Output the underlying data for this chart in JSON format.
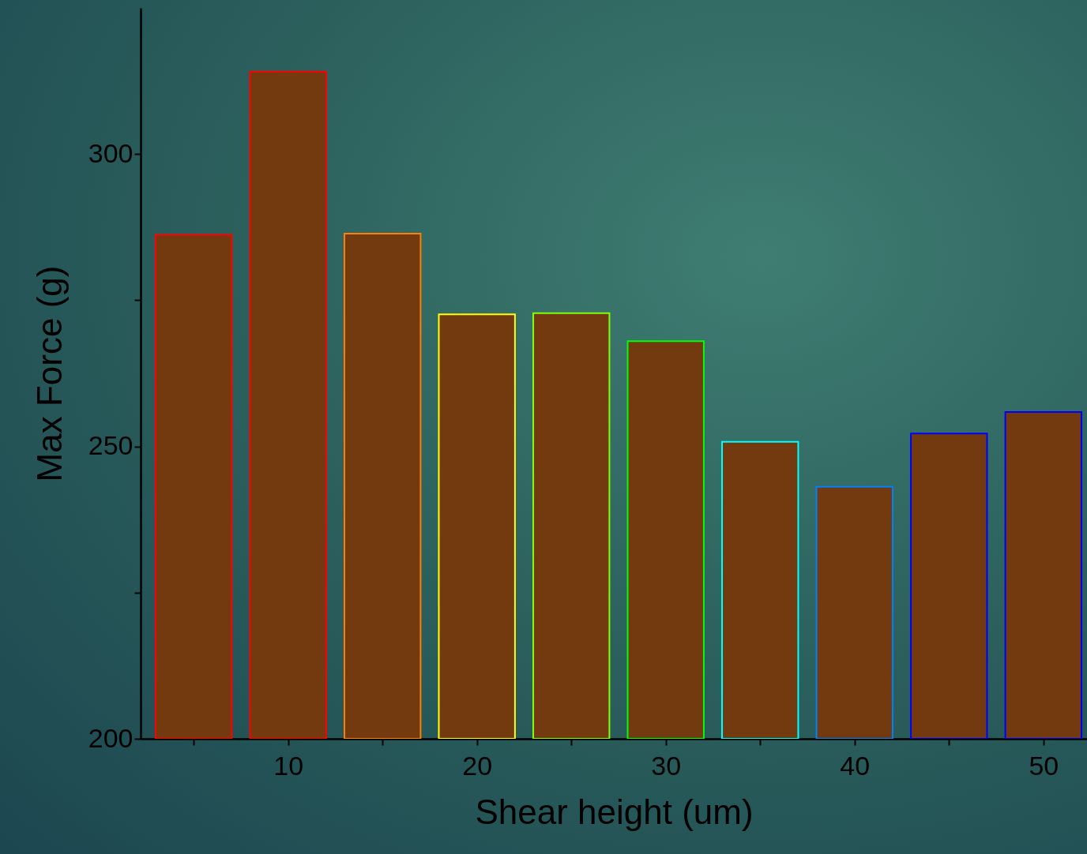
{
  "chart_data": {
    "type": "bar",
    "xlabel": "Shear height (um)",
    "ylabel": "Max Force (g)",
    "x": [
      5,
      10,
      15,
      20,
      25,
      30,
      35,
      40,
      45,
      50
    ],
    "values": [
      286.2,
      314.1,
      286.4,
      272.6,
      272.8,
      268.0,
      250.8,
      243.1,
      252.2,
      255.9
    ],
    "color": "#733a10",
    "colors": [
      "#ff0000",
      "#ff0000",
      "#ff8000",
      "#ffff00",
      "#80ff00",
      "#00ff00",
      "#00ffff",
      "#0080ff",
      "#0000ff",
      "#0000ff"
    ],
    "xlim": [
      2.4,
      52.1
    ],
    "xticks": [
      {
        "value": 5,
        "label": null
      },
      10,
      {
        "value": 15,
        "label": null
      },
      20,
      {
        "value": 25,
        "label": null
      },
      30,
      {
        "value": 35,
        "label": null
      },
      40,
      {
        "value": 45,
        "label": null
      },
      50
    ],
    "ylim": [
      200,
      325
    ],
    "yticks": [
      200,
      {
        "value": 225,
        "label": null
      },
      250,
      {
        "value": 275,
        "label": null
      },
      300
    ],
    "grid": false
  }
}
